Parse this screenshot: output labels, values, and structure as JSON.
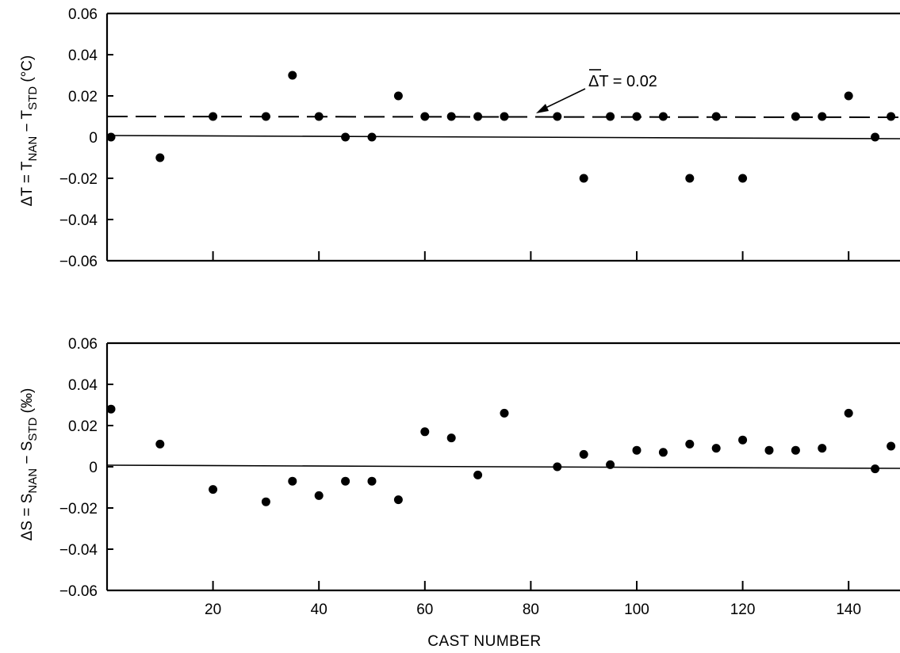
{
  "chart_data": [
    {
      "type": "scatter",
      "ylabel": {
        "prefix": "ΔT = T",
        "sub1": "NAN",
        "mid": " − T",
        "sub2": "STD",
        "unit": " (°C)"
      },
      "ylim": [
        -0.06,
        0.06
      ],
      "yticks": [
        "0.06",
        "0.04",
        "0.02",
        "0",
        "−0.02",
        "−0.04",
        "−0.06"
      ],
      "xlim": [
        0,
        148
      ],
      "annotation": {
        "text": "ΔT = 0.02",
        "reference_y": 0.01
      },
      "grid": false,
      "points": [
        {
          "x": 0,
          "y": 0.0
        },
        {
          "x": 10,
          "y": -0.01
        },
        {
          "x": 20,
          "y": 0.01
        },
        {
          "x": 30,
          "y": 0.01
        },
        {
          "x": 35,
          "y": 0.03
        },
        {
          "x": 40,
          "y": 0.01
        },
        {
          "x": 45,
          "y": 0.0
        },
        {
          "x": 50,
          "y": 0.0
        },
        {
          "x": 55,
          "y": 0.02
        },
        {
          "x": 60,
          "y": 0.01
        },
        {
          "x": 65,
          "y": 0.01
        },
        {
          "x": 70,
          "y": 0.01
        },
        {
          "x": 75,
          "y": 0.01
        },
        {
          "x": 85,
          "y": 0.01
        },
        {
          "x": 90,
          "y": -0.02
        },
        {
          "x": 95,
          "y": 0.01
        },
        {
          "x": 100,
          "y": 0.01
        },
        {
          "x": 105,
          "y": 0.01
        },
        {
          "x": 110,
          "y": -0.02
        },
        {
          "x": 115,
          "y": 0.01
        },
        {
          "x": 120,
          "y": -0.02
        },
        {
          "x": 130,
          "y": 0.01
        },
        {
          "x": 135,
          "y": 0.01
        },
        {
          "x": 140,
          "y": 0.02
        },
        {
          "x": 145,
          "y": 0.0
        },
        {
          "x": 148,
          "y": 0.01
        }
      ]
    },
    {
      "type": "scatter",
      "ylabel": {
        "prefix": "ΔS = S",
        "sub1": "NAN",
        "mid": " − S",
        "sub2": "STD",
        "unit": " (‰)"
      },
      "ylim": [
        -0.06,
        0.06
      ],
      "yticks": [
        "0.06",
        "0.04",
        "0.02",
        "0",
        "−0.02",
        "−0.04",
        "−0.06"
      ],
      "xlim": [
        0,
        148
      ],
      "xticks": [
        "20",
        "40",
        "60",
        "80",
        "100",
        "120",
        "140"
      ],
      "xlabel": "CAST NUMBER",
      "grid": false,
      "points": [
        {
          "x": 0,
          "y": 0.028
        },
        {
          "x": 10,
          "y": 0.011
        },
        {
          "x": 20,
          "y": -0.011
        },
        {
          "x": 30,
          "y": -0.017
        },
        {
          "x": 35,
          "y": -0.007
        },
        {
          "x": 40,
          "y": -0.014
        },
        {
          "x": 45,
          "y": -0.007
        },
        {
          "x": 50,
          "y": -0.007
        },
        {
          "x": 55,
          "y": -0.016
        },
        {
          "x": 60,
          "y": 0.017
        },
        {
          "x": 65,
          "y": 0.014
        },
        {
          "x": 70,
          "y": -0.004
        },
        {
          "x": 75,
          "y": 0.026
        },
        {
          "x": 85,
          "y": 0.0
        },
        {
          "x": 90,
          "y": 0.006
        },
        {
          "x": 95,
          "y": 0.001
        },
        {
          "x": 100,
          "y": 0.008
        },
        {
          "x": 105,
          "y": 0.007
        },
        {
          "x": 110,
          "y": 0.011
        },
        {
          "x": 115,
          "y": 0.009
        },
        {
          "x": 120,
          "y": 0.013
        },
        {
          "x": 125,
          "y": 0.008
        },
        {
          "x": 130,
          "y": 0.008
        },
        {
          "x": 135,
          "y": 0.009
        },
        {
          "x": 140,
          "y": 0.026
        },
        {
          "x": 145,
          "y": -0.001
        },
        {
          "x": 148,
          "y": 0.01
        }
      ]
    }
  ]
}
